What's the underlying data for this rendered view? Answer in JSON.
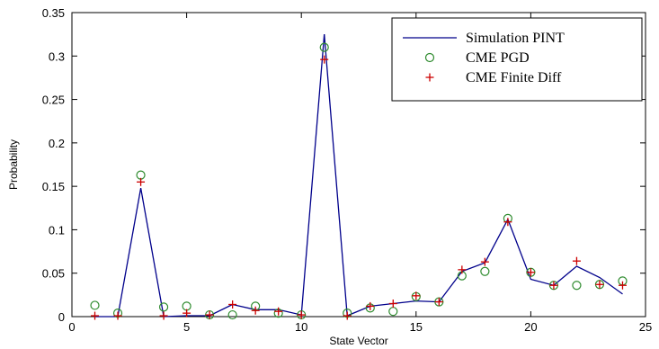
{
  "chart_data": {
    "type": "line",
    "title": "",
    "xlabel": "State Vector",
    "ylabel": "Probability",
    "xlim": [
      0,
      25
    ],
    "ylim": [
      0,
      0.35
    ],
    "xticks": [
      "0",
      "5",
      "10",
      "15",
      "20",
      "25"
    ],
    "yticks": [
      "0",
      "0.05",
      "0.1",
      "0.15",
      "0.2",
      "0.25",
      "0.3",
      "0.35"
    ],
    "xtick_values": [
      0,
      5,
      10,
      15,
      20,
      25
    ],
    "ytick_values": [
      0,
      0.05,
      0.1,
      0.15,
      0.2,
      0.25,
      0.3,
      0.35
    ],
    "grid": false,
    "legend_position": "top-right",
    "series": [
      {
        "name": "Simulation PINT",
        "style": "line",
        "color": "#00008b",
        "x": [
          1,
          2,
          3,
          4,
          5,
          6,
          7,
          8,
          9,
          10,
          11,
          12,
          13,
          14,
          15,
          16,
          17,
          18,
          19,
          20,
          21,
          22,
          23,
          24
        ],
        "y": [
          0.0,
          0.0,
          0.148,
          0.0,
          0.001,
          0.001,
          0.014,
          0.008,
          0.008,
          0.002,
          0.325,
          0.001,
          0.012,
          0.015,
          0.018,
          0.017,
          0.052,
          0.062,
          0.112,
          0.043,
          0.036,
          0.058,
          0.045,
          0.026
        ]
      },
      {
        "name": "CME PGD",
        "style": "circle",
        "color": "#2e8b2e",
        "x": [
          1,
          2,
          3,
          4,
          5,
          6,
          7,
          8,
          9,
          10,
          11,
          12,
          13,
          14,
          15,
          16,
          17,
          18,
          19,
          20,
          21,
          22,
          23,
          24
        ],
        "y": [
          0.013,
          0.004,
          0.163,
          0.011,
          0.012,
          0.002,
          0.002,
          0.012,
          0.004,
          0.002,
          0.31,
          0.004,
          0.01,
          0.006,
          0.023,
          0.017,
          0.047,
          0.052,
          0.113,
          0.051,
          0.036,
          0.036,
          0.037,
          0.041
        ]
      },
      {
        "name": "CME Finite Diff",
        "style": "plus",
        "color": "#cc0000",
        "x": [
          1,
          2,
          3,
          4,
          5,
          6,
          7,
          8,
          9,
          10,
          11,
          12,
          13,
          14,
          15,
          16,
          17,
          18,
          19,
          20,
          21,
          22,
          23,
          24
        ],
        "y": [
          0.001,
          0.001,
          0.155,
          0.001,
          0.004,
          0.002,
          0.014,
          0.007,
          0.006,
          0.002,
          0.296,
          0.001,
          0.012,
          0.015,
          0.024,
          0.017,
          0.054,
          0.063,
          0.109,
          0.051,
          0.036,
          0.064,
          0.037,
          0.036
        ]
      }
    ]
  }
}
